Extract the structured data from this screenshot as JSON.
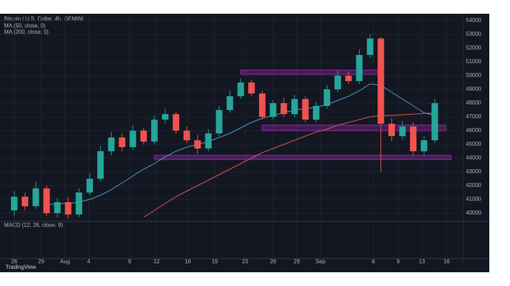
{
  "chart_data": {
    "type": "candlestick",
    "header": "Bitcoin / U.S. Dollar, 4h, GEMINI",
    "footer": "TradingView",
    "lower_pane": "MACD (12, 26, close, 9)",
    "x": [
      0,
      1,
      2,
      3,
      4,
      5,
      6,
      7,
      8,
      9,
      10,
      11,
      12,
      13,
      14,
      15,
      16,
      17,
      18,
      19,
      20,
      21,
      22,
      23,
      24,
      25,
      26,
      27,
      28,
      29,
      30,
      31,
      32,
      33,
      34,
      35,
      36,
      37,
      38,
      39
    ],
    "open": [
      40200,
      41200,
      40500,
      41800,
      40000,
      40800,
      39900,
      41500,
      42500,
      44500,
      45500,
      44800,
      46000,
      45200,
      46800,
      47200,
      46000,
      45300,
      44700,
      45800,
      47500,
      48500,
      49500,
      48700,
      47000,
      48000,
      47200,
      48300,
      46800,
      47800,
      49000,
      50000,
      49600,
      51500,
      52700,
      46500,
      45600,
      46300,
      44500,
      45300
    ],
    "close": [
      41200,
      40500,
      41800,
      40000,
      40800,
      39900,
      41500,
      42500,
      44500,
      45500,
      44800,
      46000,
      45200,
      46800,
      47200,
      46000,
      45300,
      44700,
      45800,
      47500,
      48500,
      49500,
      48700,
      47000,
      48000,
      47200,
      48300,
      46800,
      47800,
      49000,
      50000,
      49600,
      51500,
      52700,
      46500,
      45600,
      46300,
      44500,
      45300,
      48000
    ],
    "high": [
      41600,
      41500,
      42300,
      42000,
      41100,
      41200,
      41800,
      42900,
      44900,
      45900,
      45800,
      46400,
      46200,
      47100,
      47600,
      47400,
      46300,
      45700,
      46100,
      47800,
      48900,
      49800,
      49700,
      48900,
      48200,
      48400,
      48600,
      48500,
      48100,
      49300,
      50400,
      50300,
      51900,
      53000,
      52800,
      46900,
      46700,
      46600,
      45600,
      48300
    ],
    "low": [
      39800,
      40200,
      40300,
      39800,
      39700,
      39600,
      39700,
      41300,
      42300,
      44200,
      44500,
      44600,
      45000,
      45000,
      46500,
      45800,
      45100,
      44300,
      44500,
      45600,
      47300,
      48300,
      48500,
      46800,
      46800,
      47000,
      47000,
      46600,
      46600,
      47600,
      48800,
      49400,
      49400,
      51300,
      43000,
      45200,
      45300,
      44200,
      44200,
      45100
    ],
    "up_color": "#26a69a",
    "down_color": "#ef5350",
    "series": [
      {
        "name": "MA (50, close, 0)",
        "color": "#4aa8d8",
        "values": [
          null,
          null,
          null,
          40600,
          40700,
          40700,
          40800,
          41000,
          41300,
          41700,
          42200,
          42700,
          43200,
          43600,
          44100,
          44500,
          44800,
          45000,
          45200,
          45500,
          45800,
          46200,
          46600,
          46900,
          47100,
          47300,
          47500,
          47600,
          47700,
          47900,
          48200,
          48500,
          48900,
          49400,
          49300,
          48800,
          48300,
          47800,
          47300,
          47100
        ]
      },
      {
        "name": "MA (200, close, 0)",
        "color": "#e05a4f",
        "values": [
          null,
          null,
          null,
          null,
          null,
          null,
          null,
          null,
          null,
          null,
          null,
          null,
          39700,
          40200,
          40700,
          41200,
          41600,
          42000,
          42400,
          42800,
          43200,
          43600,
          44000,
          44400,
          44700,
          45000,
          45300,
          45600,
          45900,
          46100,
          46400,
          46600,
          46800,
          47000,
          47100,
          47100,
          47150,
          47200,
          47250,
          47300
        ]
      }
    ],
    "zones": [
      {
        "price": [
          50100,
          50400
        ],
        "x": [
          21,
          34
        ]
      },
      {
        "price": [
          46000,
          46400
        ],
        "x": [
          23,
          40
        ]
      },
      {
        "price": [
          43900,
          44200
        ],
        "x": [
          13,
          40.5
        ]
      }
    ],
    "xlim": [
      -1,
      41.5
    ],
    "xticks": [
      {
        "value": 0,
        "label": "26"
      },
      {
        "value": 2.5,
        "label": "29"
      },
      {
        "value": 4.7,
        "label": "Aug"
      },
      {
        "value": 6.9,
        "label": "4"
      },
      {
        "value": 10.7,
        "label": "9"
      },
      {
        "value": 13.2,
        "label": "12"
      },
      {
        "value": 16.1,
        "label": "16"
      },
      {
        "value": 18.6,
        "label": "19"
      },
      {
        "value": 21.4,
        "label": "23"
      },
      {
        "value": 24,
        "label": "26"
      },
      {
        "value": 26.2,
        "label": "29"
      },
      {
        "value": 28.4,
        "label": "Sep"
      },
      {
        "value": 33.3,
        "label": "6"
      },
      {
        "value": 35.6,
        "label": "9"
      },
      {
        "value": 37.8,
        "label": "13"
      },
      {
        "value": 40.1,
        "label": "16"
      }
    ],
    "ylim": [
      39500,
      54400
    ],
    "yticks": [
      40000,
      41000,
      42000,
      43000,
      44000,
      45000,
      46000,
      47000,
      48000,
      49000,
      50000,
      51000,
      52000,
      53000,
      54000
    ],
    "grid": true
  }
}
